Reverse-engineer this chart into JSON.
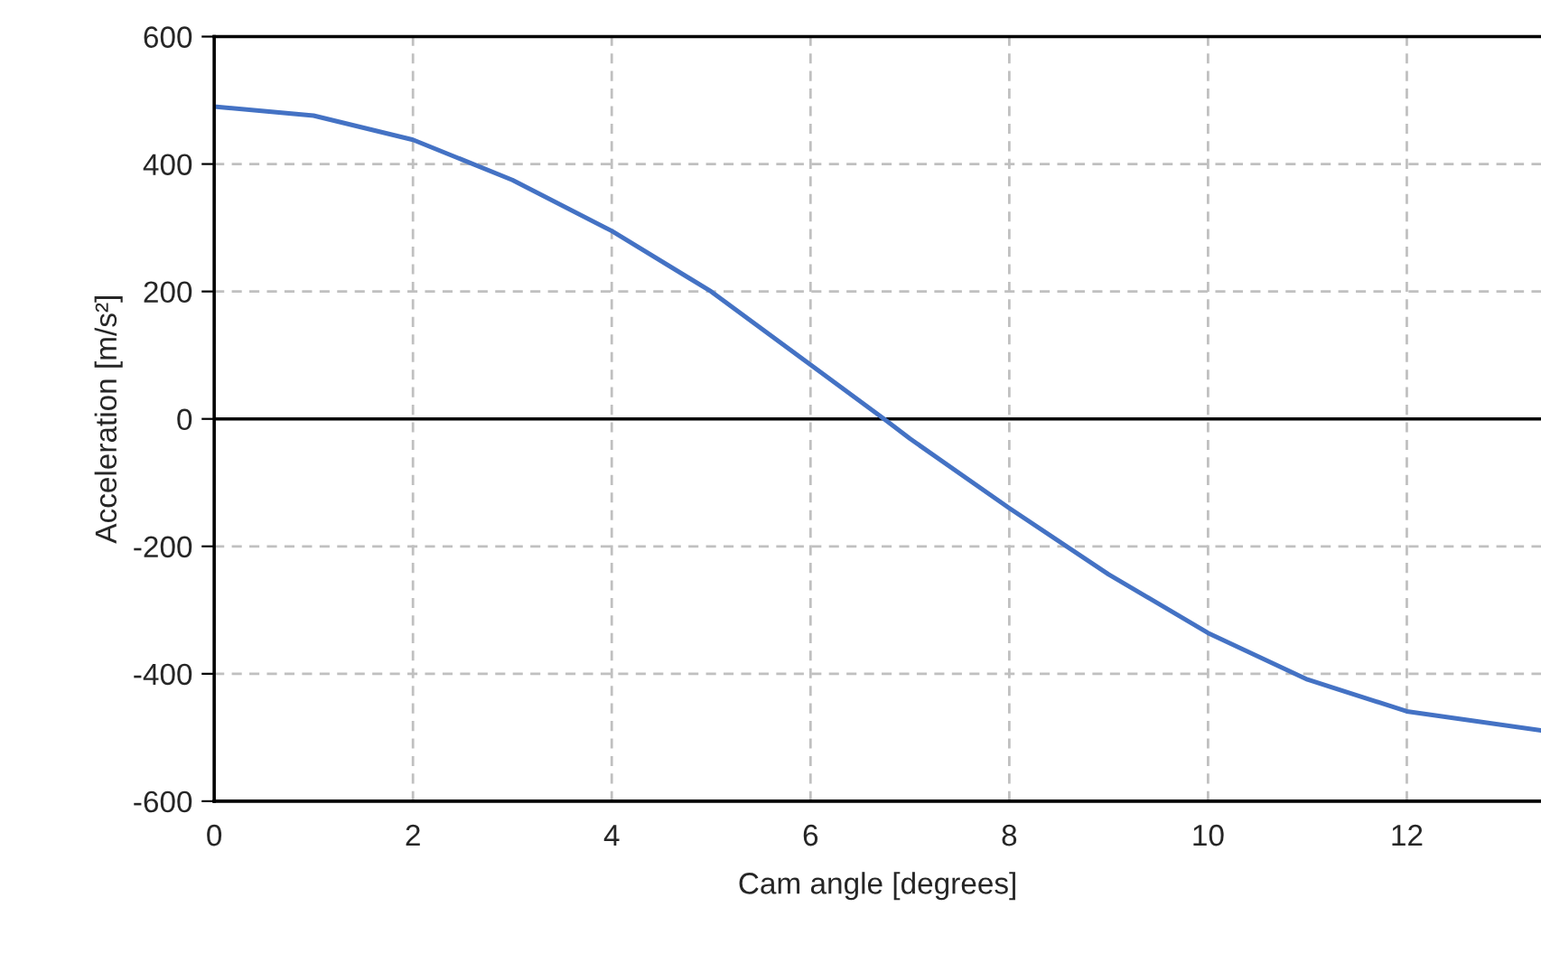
{
  "chart_data": {
    "type": "line",
    "xlabel": "Cam angle [degrees]",
    "ylabel": "Acceleration [m/s²]",
    "series": [
      {
        "color": "#4472c4",
        "x": [
          0,
          1,
          2,
          3,
          4,
          5,
          6,
          6.74,
          7,
          8,
          9,
          10,
          11,
          12,
          13.35
        ],
        "values": [
          490,
          476,
          438,
          375,
          295,
          200,
          85,
          0,
          -31,
          -140,
          -244,
          -336,
          -409,
          -459,
          -489
        ]
      }
    ],
    "xlim": [
      0,
      13.35
    ],
    "ylim": [
      -600,
      600
    ],
    "xticks": [
      0,
      2,
      4,
      6,
      8,
      10,
      12
    ],
    "yticks": [
      -600,
      -400,
      -200,
      0,
      200,
      400,
      600
    ],
    "grid": true,
    "line_style": "solid",
    "marker": "none",
    "ref_lines": [
      {
        "axis": "y",
        "value": 0,
        "color": "#000000"
      }
    ]
  }
}
